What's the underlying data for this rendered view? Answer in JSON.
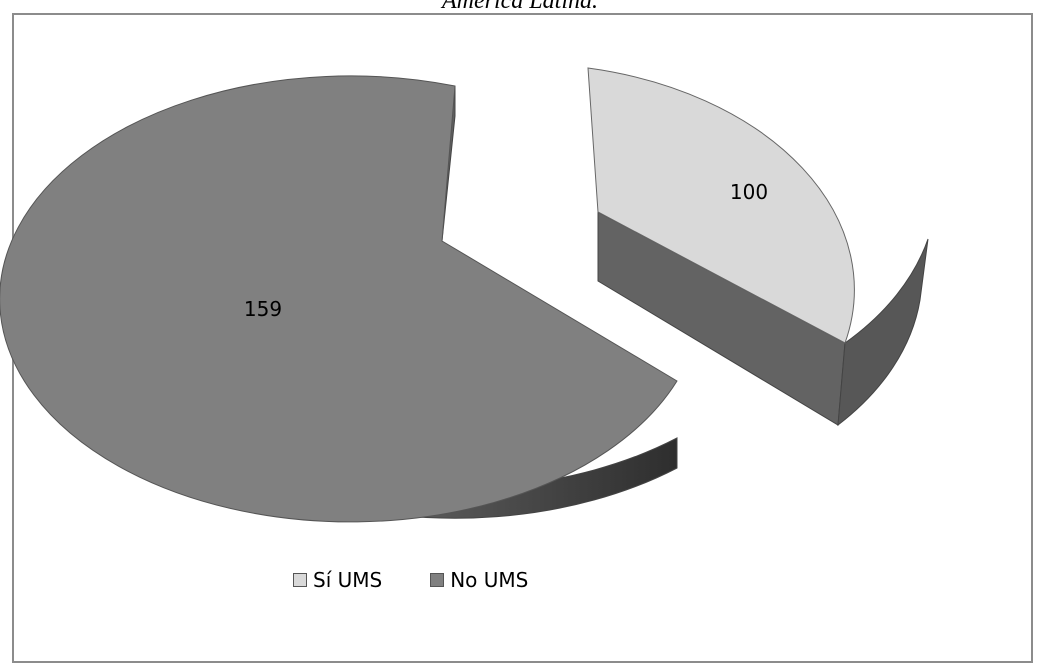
{
  "caption": "América Latina.",
  "chart_data": {
    "type": "pie",
    "style": "3d-exploded",
    "categories": [
      "Sí UMS",
      "No UMS"
    ],
    "values": [
      100,
      159
    ],
    "colors": [
      "#d9d9d9",
      "#808080"
    ],
    "legend": "bottom"
  }
}
